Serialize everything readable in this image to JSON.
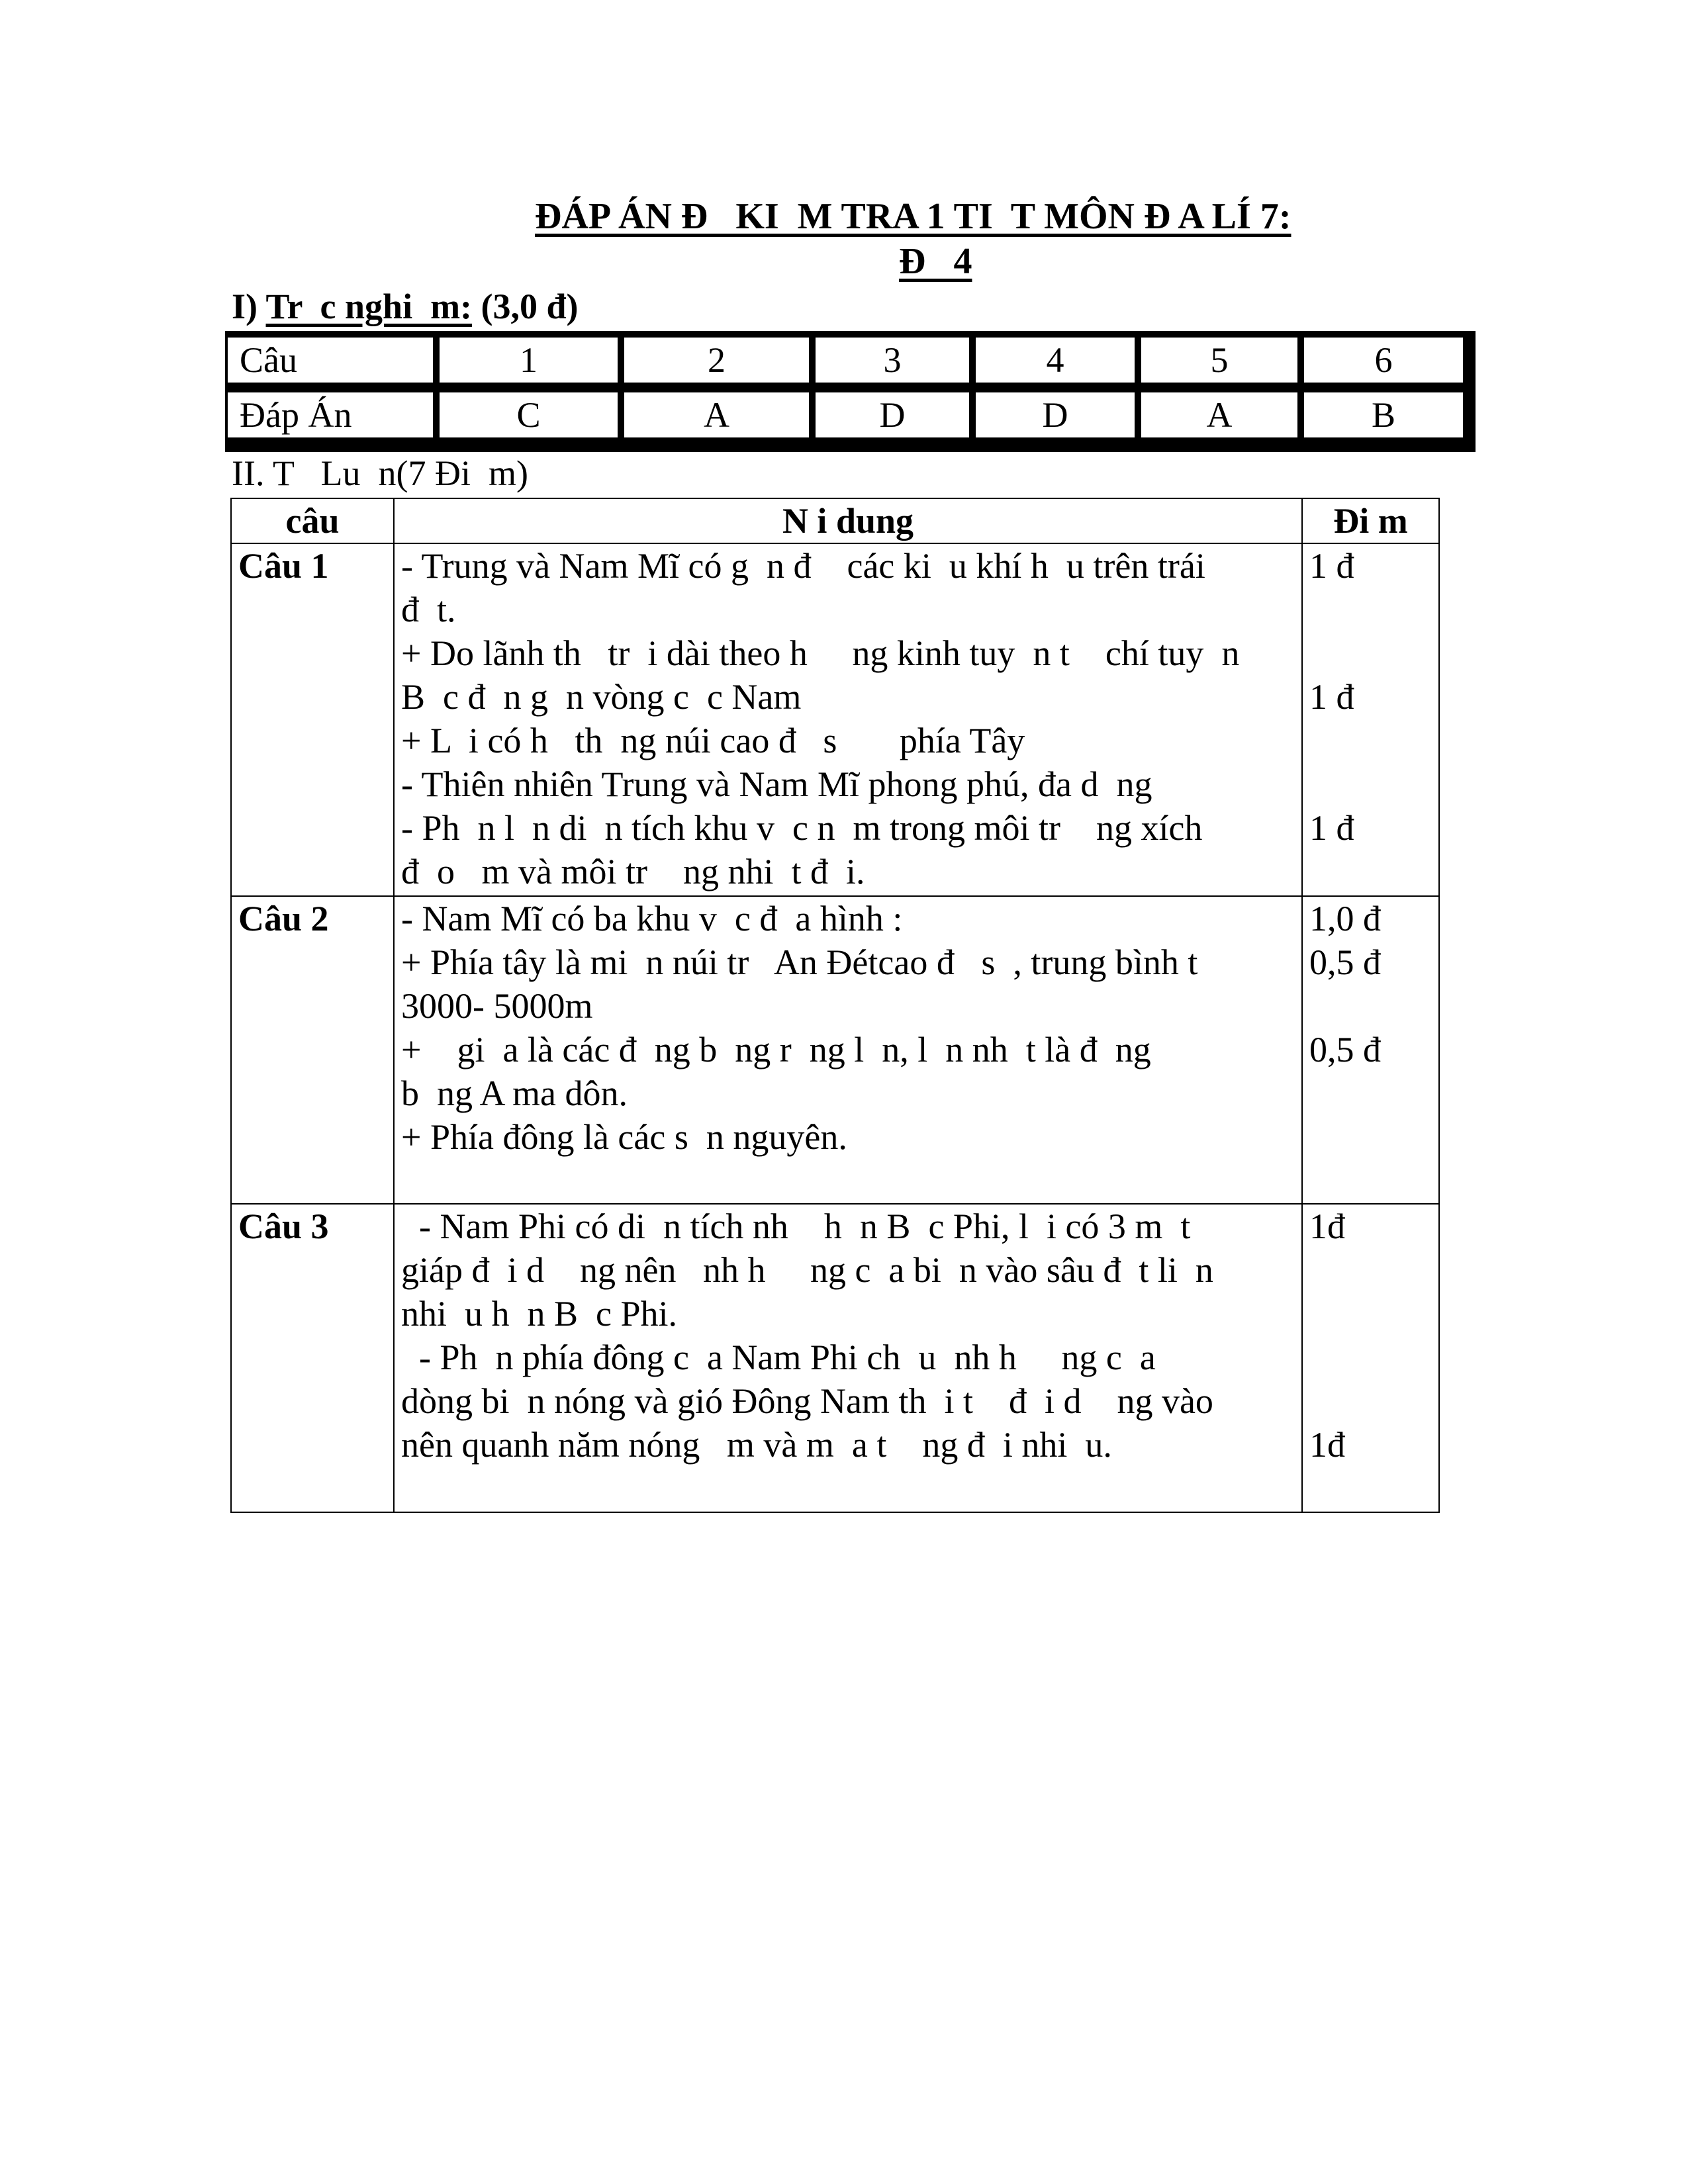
{
  "title": {
    "line1": "ĐÁP ÁN Đ   KI  M TRA 1 TI  T MÔN Đ A LÍ 7:",
    "line2": "Đ   4"
  },
  "part1": {
    "prefix": "I) ",
    "label": "Tr  c nghi  m:",
    "suffix": " (3,0 đ)"
  },
  "quiz_table": {
    "rows": [
      [
        "Câu",
        "1",
        "2",
        "3",
        "4",
        "5",
        "6"
      ],
      [
        "Đáp Án",
        "C",
        "A",
        "D",
        "D",
        "A",
        "B"
      ]
    ]
  },
  "part2": {
    "label": "II. T   Lu  n(7 Đi  m)"
  },
  "essay_table": {
    "headers": [
      "câu",
      "N  i dung",
      "Đi  m"
    ],
    "rows": [
      {
        "question": "Câu 1",
        "lines": [
          "- Trung và Nam Mĩ có g  n đ    các ki  u khí h  u trên trái",
          "đ  t.",
          "+ Do lãnh th   tr  i dài theo h     ng kinh tuy  n t    chí tuy  n",
          "B  c đ  n g  n vòng c  c Nam",
          "+ L  i có h   th  ng núi cao đ   s       phía Tây",
          "- Thiên nhiên Trung và Nam Mĩ phong phú, đa d  ng",
          "- Ph  n l  n di  n tích khu v  c n  m trong môi tr    ng xích",
          "đ  o   m và môi tr    ng nhi  t đ  i."
        ],
        "points": [
          "1 đ",
          "",
          "",
          "1 đ",
          "",
          "",
          "1 đ",
          ""
        ]
      },
      {
        "question": "Câu 2",
        "lines": [
          "- Nam Mĩ có ba khu v  c đ  a hình :",
          "+ Phía tây là mi  n núi tr   An Đétcao đ   s  , trung bình t",
          "3000- 5000m",
          "+    gi  a là các đ  ng b  ng r  ng l  n, l  n nh  t là đ  ng",
          "b  ng A ma dôn.",
          "+ Phía đông là các s  n nguyên.",
          ""
        ],
        "points": [
          "1,0 đ",
          "0,5 đ",
          "",
          "0,5 đ",
          "",
          "",
          ""
        ]
      },
      {
        "question": "Câu 3",
        "lines": [
          "  - Nam Phi có di  n tích nh    h  n B  c Phi, l  i có 3 m  t",
          "giáp đ  i d    ng nên   nh h     ng c  a bi  n vào sâu đ  t li  n",
          "nhi  u h  n B  c Phi.",
          "  - Ph  n phía đông c  a Nam Phi ch  u  nh h     ng c  a",
          "dòng bi  n nóng và gió Đông Nam th  i t    đ  i d    ng vào",
          "nên quanh năm nóng   m và m  a t    ng đ  i nhi  u.",
          ""
        ],
        "points": [
          "1đ",
          "",
          "",
          "",
          "",
          "1đ",
          ""
        ]
      }
    ]
  }
}
